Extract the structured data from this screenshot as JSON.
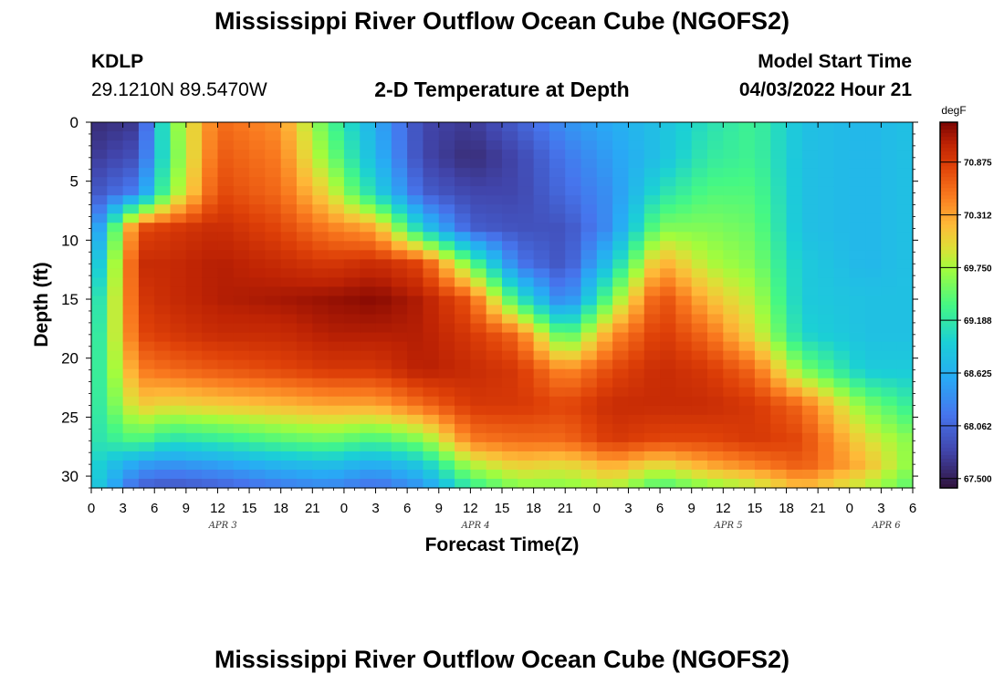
{
  "header": {
    "title": "Mississippi River Outflow Ocean Cube (NGOFS2)",
    "station_id": "KDLP",
    "station_coords": "29.1210N  89.5470W",
    "plot_title": "2-D Temperature at Depth",
    "model_start_label": "Model Start Time",
    "model_start_value": "04/03/2022 Hour 21"
  },
  "footer": {
    "title": "Mississippi River Outflow Ocean Cube (NGOFS2)"
  },
  "chart_data": {
    "type": "heatmap",
    "title": "2-D Temperature at Depth",
    "xlabel": "Forecast Time(Z)",
    "ylabel": "Depth (ft)",
    "x_ticks": [
      "0",
      "3",
      "6",
      "9",
      "12",
      "15",
      "18",
      "21",
      "0",
      "3",
      "6",
      "9",
      "12",
      "15",
      "18",
      "21",
      "0",
      "3",
      "6",
      "9",
      "12",
      "15",
      "18",
      "21",
      "0",
      "3",
      "6"
    ],
    "x_range_hours": [
      0,
      78
    ],
    "date_labels": [
      {
        "label": "APR 3",
        "hour": 12.5
      },
      {
        "label": "APR 4",
        "hour": 36.5
      },
      {
        "label": "APR 5",
        "hour": 60.5
      },
      {
        "label": "APR 6",
        "hour": 75.5
      }
    ],
    "y_ticks": [
      0,
      5,
      10,
      15,
      20,
      25,
      30
    ],
    "y_range_ft": [
      0,
      31
    ],
    "colorbar": {
      "unit": "degF",
      "min": 67.4,
      "max": 71.3,
      "ticks": [
        "67.500",
        "68.062",
        "68.625",
        "69.188",
        "69.750",
        "70.312",
        "70.875"
      ],
      "tick_values": [
        67.5,
        68.062,
        68.625,
        69.188,
        69.75,
        70.312,
        70.875
      ]
    },
    "grid_step_hours": 1.5,
    "grid_step_ft": 0.775,
    "anchor_hours": [
      0,
      4.5,
      7.5,
      12,
      18,
      22.5,
      27,
      31.5,
      36,
      40.5,
      45,
      49.5,
      54,
      58.5,
      63,
      67.5,
      73.5,
      78
    ],
    "anchor_depths_ft": [
      0,
      3,
      6,
      9,
      12,
      15,
      18,
      21,
      24,
      27,
      29,
      31
    ],
    "temperature_degF": [
      [
        67.6,
        67.7,
        67.9,
        68.1,
        68.5,
        68.8,
        68.9,
        69.0,
        69.05,
        69.1,
        69.05,
        69.0
      ],
      [
        67.7,
        67.9,
        68.3,
        70.8,
        71.0,
        70.9,
        70.8,
        70.5,
        70.1,
        69.4,
        68.5,
        68.0
      ],
      [
        69.5,
        69.4,
        69.6,
        70.9,
        71.0,
        71.0,
        70.9,
        70.6,
        70.0,
        69.1,
        68.4,
        67.9
      ],
      [
        70.6,
        70.7,
        70.8,
        71.0,
        71.1,
        71.1,
        71.0,
        70.7,
        70.1,
        69.2,
        68.5,
        68.0
      ],
      [
        70.4,
        70.5,
        70.6,
        70.8,
        71.0,
        71.15,
        71.0,
        70.8,
        70.2,
        69.4,
        68.7,
        68.2
      ],
      [
        69.4,
        69.6,
        70.0,
        70.5,
        70.9,
        71.2,
        71.1,
        70.9,
        70.3,
        69.5,
        68.8,
        68.3
      ],
      [
        68.6,
        68.7,
        69.0,
        70.3,
        71.0,
        71.25,
        71.1,
        70.9,
        70.3,
        69.3,
        68.6,
        68.1
      ],
      [
        67.8,
        67.8,
        68.0,
        68.9,
        70.8,
        71.1,
        71.1,
        71.1,
        70.6,
        69.6,
        68.9,
        68.4
      ],
      [
        67.7,
        67.6,
        67.8,
        68.0,
        69.5,
        70.7,
        70.9,
        71.0,
        70.9,
        70.5,
        69.8,
        69.2
      ],
      [
        68.0,
        67.8,
        67.8,
        67.9,
        68.2,
        69.2,
        70.6,
        70.9,
        70.9,
        70.6,
        70.1,
        69.6
      ],
      [
        68.4,
        68.2,
        68.1,
        67.9,
        67.9,
        68.2,
        69.3,
        70.4,
        70.8,
        70.6,
        70.0,
        69.6
      ],
      [
        68.6,
        68.5,
        68.4,
        68.4,
        68.9,
        69.6,
        70.4,
        70.8,
        71.0,
        70.9,
        70.3,
        69.8
      ],
      [
        68.8,
        68.8,
        69.1,
        69.6,
        70.3,
        70.8,
        70.9,
        71.0,
        71.0,
        70.8,
        70.0,
        69.3
      ],
      [
        69.1,
        69.2,
        69.4,
        69.6,
        69.8,
        70.2,
        70.6,
        70.9,
        71.0,
        70.8,
        70.3,
        69.6
      ],
      [
        69.3,
        69.3,
        69.4,
        69.5,
        69.6,
        69.8,
        70.0,
        70.6,
        70.9,
        70.9,
        70.5,
        69.8
      ],
      [
        68.8,
        68.8,
        68.8,
        68.8,
        68.9,
        68.9,
        69.0,
        69.6,
        70.6,
        70.8,
        70.7,
        70.2
      ],
      [
        68.7,
        68.7,
        68.7,
        68.7,
        68.7,
        68.8,
        68.8,
        68.9,
        69.6,
        70.0,
        70.2,
        69.8
      ],
      [
        68.8,
        68.8,
        68.8,
        68.8,
        68.8,
        68.8,
        68.8,
        68.9,
        69.2,
        69.6,
        69.6,
        69.4
      ]
    ]
  }
}
